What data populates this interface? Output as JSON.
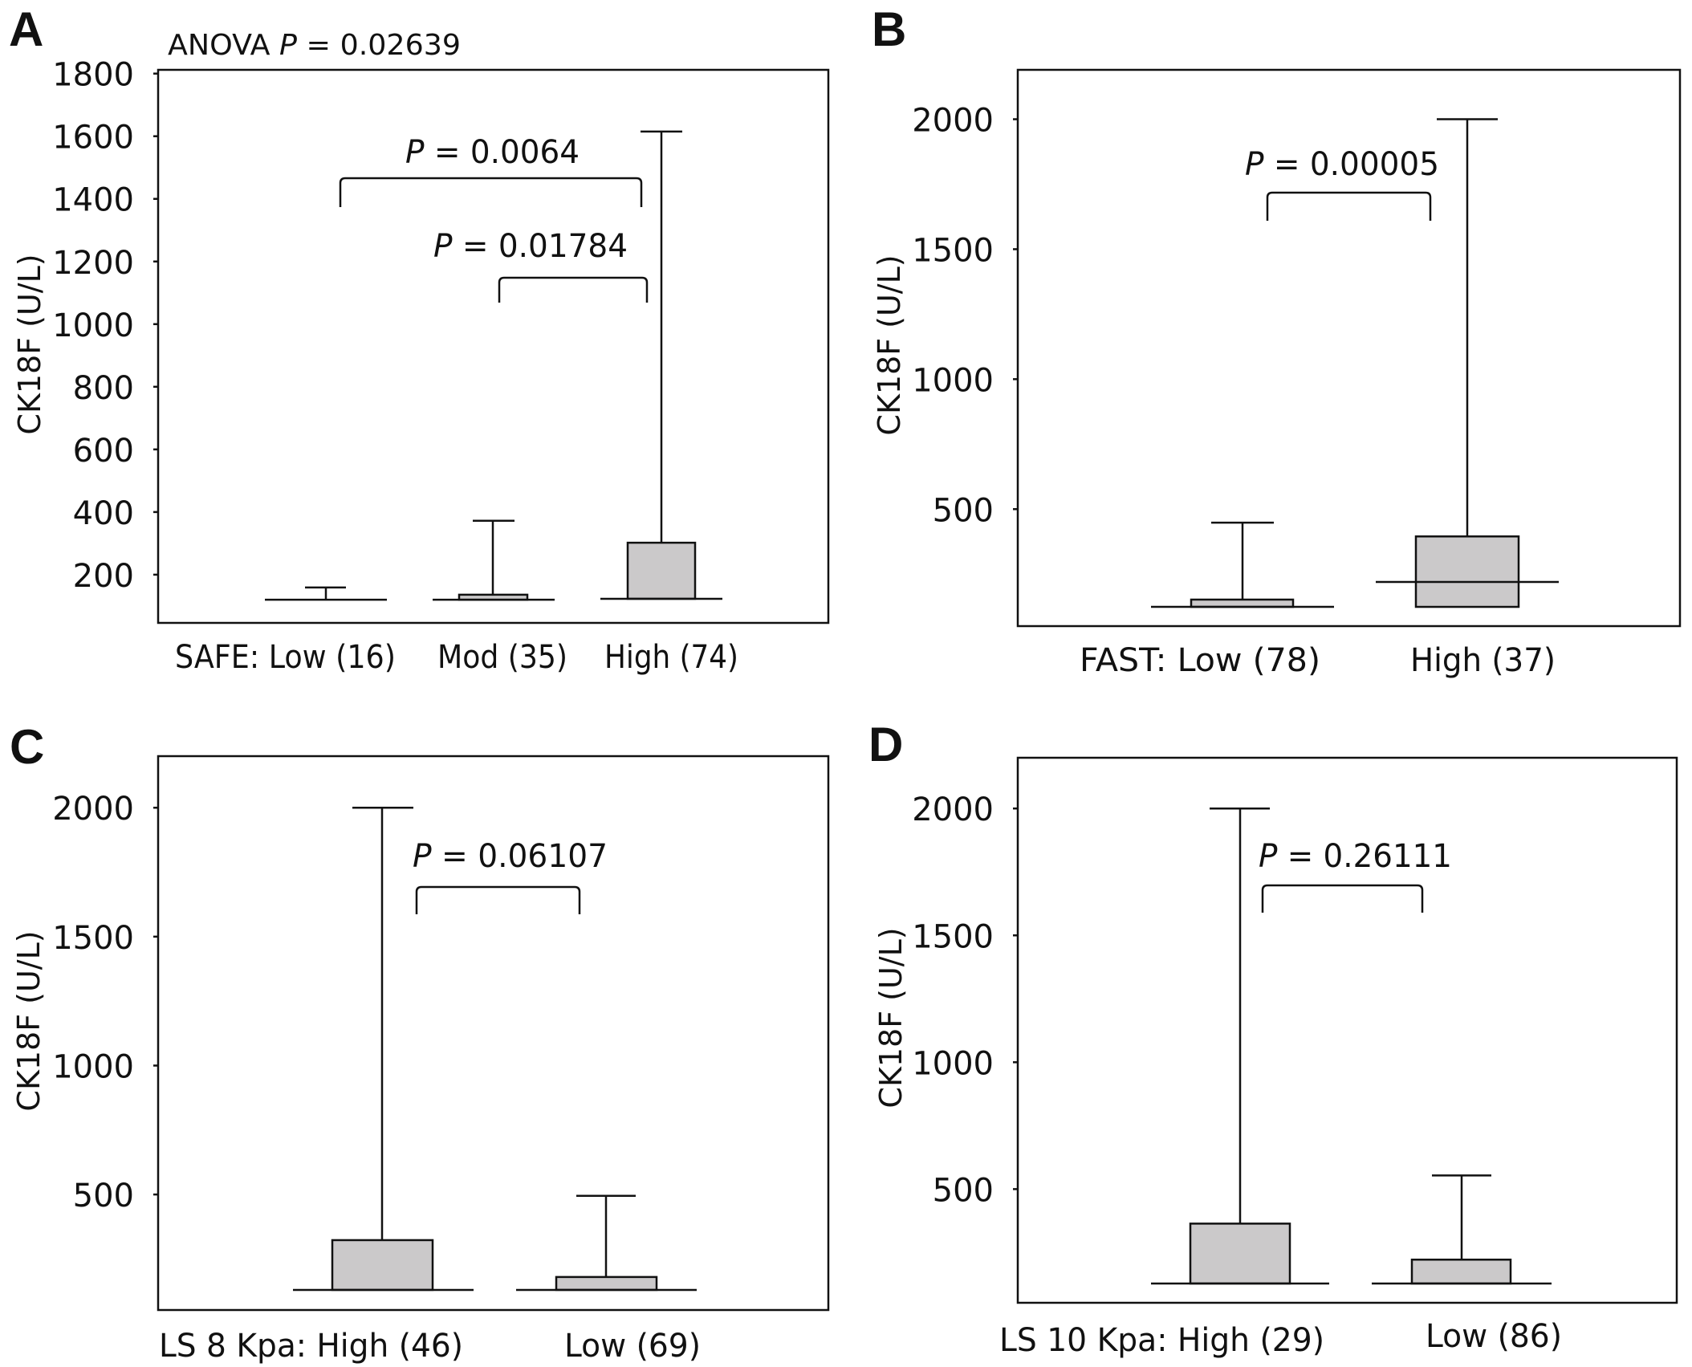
{
  "colors": {
    "box_fill": "#cbc9ca",
    "ink": "#111111"
  },
  "chart_data": [
    {
      "panel": "A",
      "type": "box",
      "title": "",
      "annotation": {
        "prefix": "ANOVA ",
        "p_symbol": "P",
        "eq": " = ",
        "value": "0.02639"
      },
      "ylabel": "CK18F (U/L)",
      "xlabel_prefix": "SAFE: ",
      "ylim": [
        46,
        1812
      ],
      "yticks": [
        200,
        400,
        600,
        800,
        1000,
        1200,
        1400,
        1600,
        1800
      ],
      "ytick_labels": [
        "200",
        "400",
        "600",
        "800",
        "1000",
        "1200",
        "1400",
        "1600",
        "1800"
      ],
      "categories": [
        "SAFE: Low (16)",
        "Mod (35)",
        "High (74)"
      ],
      "groups": [
        {
          "name": "Low",
          "n": 16,
          "q1": 120,
          "median": 120,
          "q3": 120,
          "whisker_high": 159
        },
        {
          "name": "Mod",
          "n": 35,
          "q1": 120,
          "median": 120,
          "q3": 136,
          "whisker_high": 372
        },
        {
          "name": "High",
          "n": 74,
          "q1": 123,
          "median": 123,
          "q3": 302,
          "whisker_high": 1615
        }
      ],
      "comparisons": [
        {
          "groups": [
            "Low",
            "High"
          ],
          "p_symbol": "P",
          "label": " = 0.0064"
        },
        {
          "groups": [
            "Mod",
            "High"
          ],
          "p_symbol": "P",
          "label": " = 0.01784"
        }
      ]
    },
    {
      "panel": "B",
      "type": "box",
      "ylabel": "CK18F (U/L)",
      "ylim": [
        50,
        2190
      ],
      "yticks": [
        500,
        1000,
        1500,
        2000
      ],
      "ytick_labels": [
        "500",
        "1000",
        "1500",
        "2000"
      ],
      "categories": [
        "FAST: Low (78)",
        "High (37)"
      ],
      "groups": [
        {
          "name": "Low",
          "n": 78,
          "q1": 124,
          "median": 124,
          "q3": 152,
          "whisker_high": 448
        },
        {
          "name": "High",
          "n": 37,
          "q1": 124,
          "median": 220,
          "q3": 395,
          "whisker_high": 2000
        }
      ],
      "comparisons": [
        {
          "groups": [
            "Low",
            "High"
          ],
          "p_symbol": "P",
          "label": " = 0.00005"
        }
      ]
    },
    {
      "panel": "C",
      "type": "box",
      "ylabel": "CK18F (U/L)",
      "ylim": [
        52,
        2200
      ],
      "yticks": [
        500,
        1000,
        1500,
        2000
      ],
      "ytick_labels": [
        "500",
        "1000",
        "1500",
        "2000"
      ],
      "categories": [
        "LS 8 Kpa: High (46)",
        "Low (69)"
      ],
      "groups": [
        {
          "name": "High",
          "n": 46,
          "q1": 130,
          "median": 130,
          "q3": 323,
          "whisker_high": 2000
        },
        {
          "name": "Low",
          "n": 69,
          "q1": 130,
          "median": 130,
          "q3": 180,
          "whisker_high": 495
        }
      ],
      "comparisons": [
        {
          "groups": [
            "High",
            "Low"
          ],
          "p_symbol": "P",
          "label": " = 0.06107"
        }
      ]
    },
    {
      "panel": "D",
      "type": "box",
      "ylabel": "CK18F (U/L)",
      "ylim": [
        52,
        2200
      ],
      "yticks": [
        500,
        1000,
        1500,
        2000
      ],
      "ytick_labels": [
        "500",
        "1000",
        "1500",
        "2000"
      ],
      "categories": [
        "LS 10 Kpa: High (29)",
        "Low (86)"
      ],
      "groups": [
        {
          "name": "High",
          "n": 29,
          "q1": 128,
          "median": 128,
          "q3": 364,
          "whisker_high": 2000
        },
        {
          "name": "Low",
          "n": 86,
          "q1": 128,
          "median": 128,
          "q3": 222,
          "whisker_high": 554
        }
      ],
      "comparisons": [
        {
          "groups": [
            "High",
            "Low"
          ],
          "p_symbol": "P",
          "label": " = 0.26111"
        }
      ]
    }
  ]
}
